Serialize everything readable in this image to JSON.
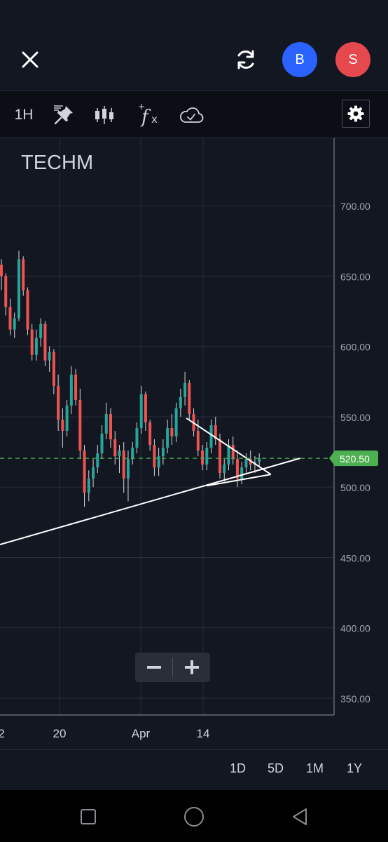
{
  "header": {
    "buy_label": "B",
    "sell_label": "S",
    "colors": {
      "buy": "#2962ff",
      "sell": "#e5484d"
    },
    "icons": [
      "close-icon",
      "refresh-icon"
    ]
  },
  "toolbar": {
    "interval": "1H",
    "icons": [
      "drawing-pin-icon",
      "candles-icon",
      "indicators-fx-icon",
      "cloud-save-icon",
      "gear-icon"
    ]
  },
  "chart_data": {
    "type": "candlestick",
    "symbol": "TECHM",
    "price_axis": {
      "ticks": [
        "700.00",
        "650.00",
        "600.00",
        "550.00",
        "500.00",
        "450.00",
        "400.00",
        "350.00"
      ],
      "ylim": [
        338,
        748
      ]
    },
    "time_axis": {
      "labels": [
        "2",
        "20",
        "Apr",
        "14"
      ]
    },
    "last_price": "520.50",
    "last_price_value": 520.5,
    "colors": {
      "up": "#26a69a",
      "down": "#ef5350",
      "last_price": "#4caf50",
      "grid": "#2a2e39"
    },
    "ohlc": [
      [
        0,
        658,
        662,
        640,
        650
      ],
      [
        0.6,
        650,
        652,
        622,
        628
      ],
      [
        1.2,
        628,
        634,
        608,
        612
      ],
      [
        1.8,
        612,
        624,
        606,
        620
      ],
      [
        2.4,
        620,
        668,
        618,
        662
      ],
      [
        3,
        662,
        664,
        636,
        640
      ],
      [
        3.6,
        640,
        642,
        608,
        612
      ],
      [
        4.2,
        612,
        616,
        590,
        594
      ],
      [
        4.8,
        594,
        612,
        590,
        606
      ],
      [
        5.4,
        606,
        620,
        600,
        616
      ],
      [
        6,
        616,
        618,
        586,
        590
      ],
      [
        6.6,
        590,
        600,
        582,
        596
      ],
      [
        7.2,
        596,
        598,
        566,
        572
      ],
      [
        7.8,
        572,
        580,
        540,
        548
      ],
      [
        8.4,
        548,
        556,
        528,
        540
      ],
      [
        9,
        540,
        562,
        536,
        558
      ],
      [
        9.6,
        558,
        586,
        552,
        580
      ],
      [
        10.2,
        580,
        584,
        558,
        562
      ],
      [
        10.8,
        562,
        570,
        520,
        526
      ],
      [
        11.4,
        526,
        530,
        486,
        496
      ],
      [
        12,
        496,
        512,
        490,
        506
      ],
      [
        12.6,
        506,
        520,
        500,
        514
      ],
      [
        13.2,
        514,
        530,
        510,
        524
      ],
      [
        13.8,
        524,
        544,
        520,
        538
      ],
      [
        14.4,
        538,
        560,
        534,
        552
      ],
      [
        15,
        552,
        556,
        528,
        534
      ],
      [
        15.6,
        534,
        540,
        516,
        522
      ],
      [
        16.2,
        522,
        530,
        510,
        526
      ],
      [
        16.8,
        526,
        532,
        496,
        506
      ],
      [
        17.4,
        506,
        526,
        490,
        520
      ],
      [
        18,
        520,
        532,
        516,
        528
      ],
      [
        18.6,
        528,
        546,
        524,
        542
      ],
      [
        19.2,
        542,
        572,
        538,
        566
      ],
      [
        19.8,
        566,
        568,
        540,
        546
      ],
      [
        20.4,
        546,
        548,
        526,
        530
      ],
      [
        21,
        530,
        534,
        508,
        514
      ],
      [
        21.6,
        514,
        528,
        508,
        522
      ],
      [
        22.2,
        522,
        534,
        516,
        528
      ],
      [
        22.8,
        528,
        548,
        524,
        542
      ],
      [
        23.4,
        542,
        552,
        530,
        536
      ],
      [
        24,
        536,
        560,
        532,
        556
      ],
      [
        24.6,
        556,
        570,
        550,
        564
      ],
      [
        25.2,
        564,
        582,
        558,
        574
      ],
      [
        25.8,
        574,
        576,
        548,
        552
      ],
      [
        26.4,
        552,
        556,
        536,
        540
      ],
      [
        27,
        540,
        548,
        522,
        526
      ],
      [
        27.6,
        526,
        530,
        512,
        516
      ],
      [
        28.2,
        516,
        532,
        512,
        528
      ],
      [
        28.8,
        528,
        548,
        524,
        544
      ],
      [
        29.4,
        544,
        550,
        530,
        534
      ],
      [
        30,
        534,
        538,
        506,
        510
      ],
      [
        30.6,
        510,
        520,
        504,
        516
      ],
      [
        31.2,
        516,
        534,
        512,
        530
      ],
      [
        31.8,
        530,
        536,
        516,
        520
      ],
      [
        32.4,
        520,
        526,
        500,
        506
      ],
      [
        33,
        506,
        518,
        502,
        514
      ],
      [
        33.6,
        514,
        524,
        510,
        520
      ],
      [
        34.2,
        520,
        526,
        512,
        516
      ],
      [
        34.8,
        516,
        522,
        510,
        518
      ],
      [
        35.4,
        518,
        524,
        514,
        520.5
      ]
    ],
    "trendlines": [
      {
        "from": [
          -3,
          455
        ],
        "to": [
          41,
          520.5
        ]
      },
      {
        "from": [
          25.4,
          549
        ],
        "to": [
          37,
          509
        ]
      },
      {
        "from": [
          28.2,
          501
        ],
        "to": [
          37,
          509
        ]
      }
    ]
  },
  "zoom": {
    "icons": [
      "minus-icon",
      "plus-icon"
    ]
  },
  "range_bar": {
    "buttons": [
      "1D",
      "5D",
      "1M",
      "1Y"
    ]
  },
  "android_nav": {
    "icons": [
      "recent-apps-icon",
      "home-icon",
      "back-icon"
    ]
  }
}
